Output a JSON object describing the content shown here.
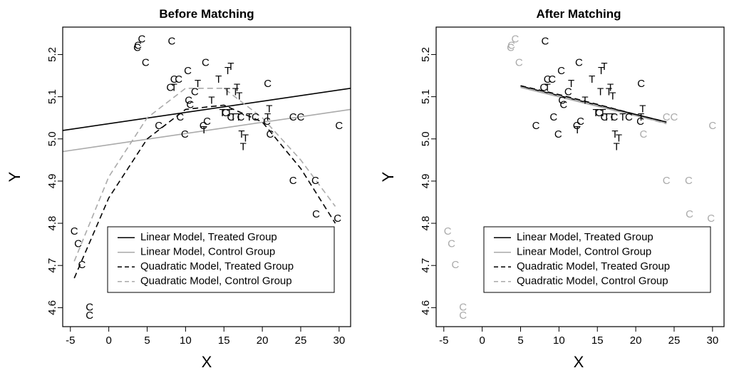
{
  "chart_data": [
    {
      "type": "scatter",
      "title": "Before Matching",
      "xlabel": "X",
      "ylabel": "Y",
      "xlim": [
        -6,
        31.5
      ],
      "ylim": [
        4.555,
        5.265
      ],
      "xticks": [
        -5,
        0,
        5,
        10,
        15,
        20,
        25,
        30
      ],
      "yticks": [
        4.6,
        4.7,
        4.8,
        4.9,
        5.0,
        5.1,
        5.2
      ],
      "grid": false,
      "legend_position": "bottom-right",
      "legend": [
        {
          "label": "Linear Model, Treated Group",
          "color": "#000000",
          "dash": "solid"
        },
        {
          "label": "Linear Model, Control Group",
          "color": "#aaaaaa",
          "dash": "solid"
        },
        {
          "label": "Quadratic Model, Treated Group",
          "color": "#000000",
          "dash": "dashed"
        },
        {
          "label": "Quadratic Model, Control Group",
          "color": "#aaaaaa",
          "dash": "dashed"
        }
      ],
      "series": [
        {
          "name": "C",
          "color": "#000000",
          "points": [
            [
              -4.5,
              4.78
            ],
            [
              -4.0,
              4.75
            ],
            [
              -3.5,
              4.7
            ],
            [
              -2.5,
              4.6
            ],
            [
              -2.5,
              4.58
            ],
            [
              3.7,
              5.215
            ],
            [
              3.8,
              5.22
            ],
            [
              4.3,
              5.235
            ],
            [
              4.8,
              5.18
            ],
            [
              8.2,
              5.23
            ],
            [
              8.0,
              5.12
            ],
            [
              8.5,
              5.14
            ],
            [
              9.1,
              5.14
            ],
            [
              9.3,
              5.05
            ],
            [
              9.9,
              5.01
            ],
            [
              10.3,
              5.16
            ],
            [
              10.4,
              5.09
            ],
            [
              10.6,
              5.08
            ],
            [
              11.2,
              5.11
            ],
            [
              12.3,
              5.03
            ],
            [
              12.6,
              5.18
            ],
            [
              12.8,
              5.04
            ],
            [
              15.2,
              5.06
            ],
            [
              15.9,
              5.05
            ],
            [
              17.2,
              5.05
            ],
            [
              19.1,
              5.05
            ],
            [
              20.6,
              5.04
            ],
            [
              20.7,
              5.13
            ],
            [
              21.0,
              5.01
            ],
            [
              24.0,
              4.9
            ],
            [
              24.0,
              5.05
            ],
            [
              25.0,
              5.05
            ],
            [
              26.9,
              4.9
            ],
            [
              27.0,
              4.82
            ],
            [
              29.8,
              4.81
            ],
            [
              30.0,
              5.03
            ],
            [
              6.5,
              5.03
            ]
          ]
        },
        {
          "name": "T",
          "color": "#000000",
          "points": [
            [
              8.5,
              5.12
            ],
            [
              11.6,
              5.13
            ],
            [
              12.4,
              5.02
            ],
            [
              13.4,
              5.09
            ],
            [
              14.3,
              5.14
            ],
            [
              14.8,
              5.06
            ],
            [
              15.4,
              5.11
            ],
            [
              15.5,
              5.16
            ],
            [
              15.7,
              5.06
            ],
            [
              15.9,
              5.17
            ],
            [
              16.2,
              5.05
            ],
            [
              16.5,
              5.11
            ],
            [
              16.7,
              5.12
            ],
            [
              16.9,
              5.05
            ],
            [
              17.0,
              5.1
            ],
            [
              17.3,
              5.01
            ],
            [
              17.5,
              4.98
            ],
            [
              17.8,
              5.0
            ],
            [
              18.3,
              5.05
            ],
            [
              20.7,
              5.05
            ],
            [
              20.9,
              5.07
            ]
          ]
        }
      ],
      "lines": [
        {
          "model": "linear",
          "group": "treated",
          "color": "#000000",
          "dash": "solid",
          "x": [
            -6,
            31.5
          ],
          "y": [
            5.02,
            5.12
          ]
        },
        {
          "model": "linear",
          "group": "control",
          "color": "#aaaaaa",
          "dash": "solid",
          "x": [
            -6,
            31.5
          ],
          "y": [
            4.97,
            5.07
          ]
        },
        {
          "model": "quadratic",
          "group": "treated",
          "color": "#000000",
          "dash": "dashed",
          "x": [
            -4.5,
            0,
            5,
            10,
            15,
            20,
            25,
            29.5
          ],
          "y": [
            4.67,
            4.86,
            5.0,
            5.07,
            5.08,
            5.04,
            4.93,
            4.8
          ]
        },
        {
          "model": "quadratic",
          "group": "control",
          "color": "#aaaaaa",
          "dash": "dashed",
          "x": [
            -4.5,
            0,
            5,
            10,
            15,
            20,
            25,
            29.5
          ],
          "y": [
            4.71,
            4.91,
            5.05,
            5.12,
            5.12,
            5.05,
            4.95,
            4.84
          ]
        }
      ]
    },
    {
      "type": "scatter",
      "title": "After Matching",
      "xlabel": "X",
      "ylabel": "Y",
      "xlim": [
        -6,
        31.5
      ],
      "ylim": [
        4.555,
        5.265
      ],
      "xticks": [
        -5,
        0,
        5,
        10,
        15,
        20,
        25,
        30
      ],
      "yticks": [
        4.6,
        4.7,
        4.8,
        4.9,
        5.0,
        5.1,
        5.2
      ],
      "grid": false,
      "legend_position": "bottom-right",
      "legend": [
        {
          "label": "Linear Model, Treated Group",
          "color": "#000000",
          "dash": "solid"
        },
        {
          "label": "Linear Model, Control Group",
          "color": "#aaaaaa",
          "dash": "solid"
        },
        {
          "label": "Quadratic Model, Treated Group",
          "color": "#000000",
          "dash": "dashed"
        },
        {
          "label": "Quadratic Model, Control Group",
          "color": "#aaaaaa",
          "dash": "dashed"
        }
      ],
      "series": [
        {
          "name": "C",
          "color": "#000000",
          "points": [
            [
              8.2,
              5.23
            ],
            [
              8.0,
              5.12
            ],
            [
              8.5,
              5.14
            ],
            [
              9.1,
              5.14
            ],
            [
              9.3,
              5.05
            ],
            [
              9.9,
              5.01
            ],
            [
              10.3,
              5.16
            ],
            [
              10.4,
              5.09
            ],
            [
              10.6,
              5.08
            ],
            [
              11.2,
              5.11
            ],
            [
              12.3,
              5.03
            ],
            [
              12.6,
              5.18
            ],
            [
              12.8,
              5.04
            ],
            [
              15.2,
              5.06
            ],
            [
              15.9,
              5.05
            ],
            [
              17.2,
              5.05
            ],
            [
              19.1,
              5.05
            ],
            [
              20.6,
              5.04
            ],
            [
              20.7,
              5.13
            ],
            [
              7.0,
              5.03
            ]
          ]
        },
        {
          "name": "C",
          "color": "#aaaaaa",
          "points": [
            [
              -4.5,
              4.78
            ],
            [
              -4.0,
              4.75
            ],
            [
              -3.5,
              4.7
            ],
            [
              -2.5,
              4.6
            ],
            [
              -2.5,
              4.58
            ],
            [
              3.7,
              5.215
            ],
            [
              3.8,
              5.22
            ],
            [
              4.3,
              5.235
            ],
            [
              4.8,
              5.18
            ],
            [
              21.0,
              5.01
            ],
            [
              24.0,
              4.9
            ],
            [
              24.0,
              5.05
            ],
            [
              25.0,
              5.05
            ],
            [
              26.9,
              4.9
            ],
            [
              27.0,
              4.82
            ],
            [
              29.8,
              4.81
            ],
            [
              30.0,
              5.03
            ]
          ]
        },
        {
          "name": "T",
          "color": "#000000",
          "points": [
            [
              8.5,
              5.12
            ],
            [
              11.6,
              5.13
            ],
            [
              12.4,
              5.02
            ],
            [
              13.4,
              5.09
            ],
            [
              14.3,
              5.14
            ],
            [
              14.8,
              5.06
            ],
            [
              15.4,
              5.11
            ],
            [
              15.5,
              5.16
            ],
            [
              15.7,
              5.06
            ],
            [
              15.9,
              5.17
            ],
            [
              16.2,
              5.05
            ],
            [
              16.5,
              5.11
            ],
            [
              16.7,
              5.12
            ],
            [
              16.9,
              5.05
            ],
            [
              17.0,
              5.1
            ],
            [
              17.3,
              5.01
            ],
            [
              17.5,
              4.98
            ],
            [
              17.8,
              5.0
            ],
            [
              18.3,
              5.05
            ],
            [
              20.7,
              5.05
            ],
            [
              20.9,
              5.07
            ]
          ]
        }
      ],
      "lines": [
        {
          "model": "linear",
          "group": "treated",
          "color": "#000000",
          "dash": "solid",
          "x": [
            5,
            24
          ],
          "y": [
            5.125,
            5.04
          ]
        },
        {
          "model": "linear",
          "group": "control",
          "color": "#aaaaaa",
          "dash": "solid",
          "x": [
            5,
            24
          ],
          "y": [
            5.122,
            5.037
          ]
        },
        {
          "model": "quadratic",
          "group": "treated",
          "color": "#000000",
          "dash": "dashed",
          "x": [
            5,
            10,
            15,
            20,
            24
          ],
          "y": [
            5.126,
            5.105,
            5.082,
            5.058,
            5.04
          ]
        },
        {
          "model": "quadratic",
          "group": "control",
          "color": "#aaaaaa",
          "dash": "dashed",
          "x": [
            5,
            10,
            15,
            20,
            24
          ],
          "y": [
            5.123,
            5.102,
            5.079,
            5.055,
            5.036
          ]
        }
      ]
    }
  ]
}
